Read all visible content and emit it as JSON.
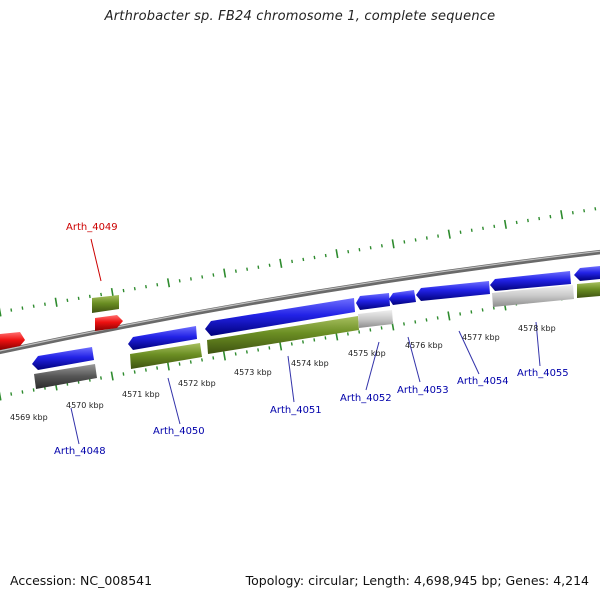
{
  "title": "Arthrobacter sp. FB24 chromosome 1, complete sequence",
  "footer": {
    "accession": "Accession: NC_008541",
    "topology": "Topology: circular; Length: 4,698,945 bp; Genes: 4,214"
  },
  "colors": {
    "gene_cds": "#2020e0",
    "gene_red": "#ee1111",
    "cds_green": "#6b8e23",
    "cds_light": "#c8c8c8",
    "cds_dark": "#555555",
    "backbone": "#808080",
    "tick": "#2e8b2e",
    "label_blue": "#0000aa",
    "label_red": "#cc0000"
  },
  "kbp_labels": [
    "4569 kbp",
    "4570 kbp",
    "4571 kbp",
    "4572 kbp",
    "4573 kbp",
    "4574 kbp",
    "4575 kbp",
    "4576 kbp",
    "4577 kbp",
    "4578 kbp"
  ],
  "gene_labels": [
    "Arth_4049",
    "Arth_4048",
    "Arth_4050",
    "Arth_4051",
    "Arth_4052",
    "Arth_4053",
    "Arth_4054",
    "Arth_4055"
  ]
}
